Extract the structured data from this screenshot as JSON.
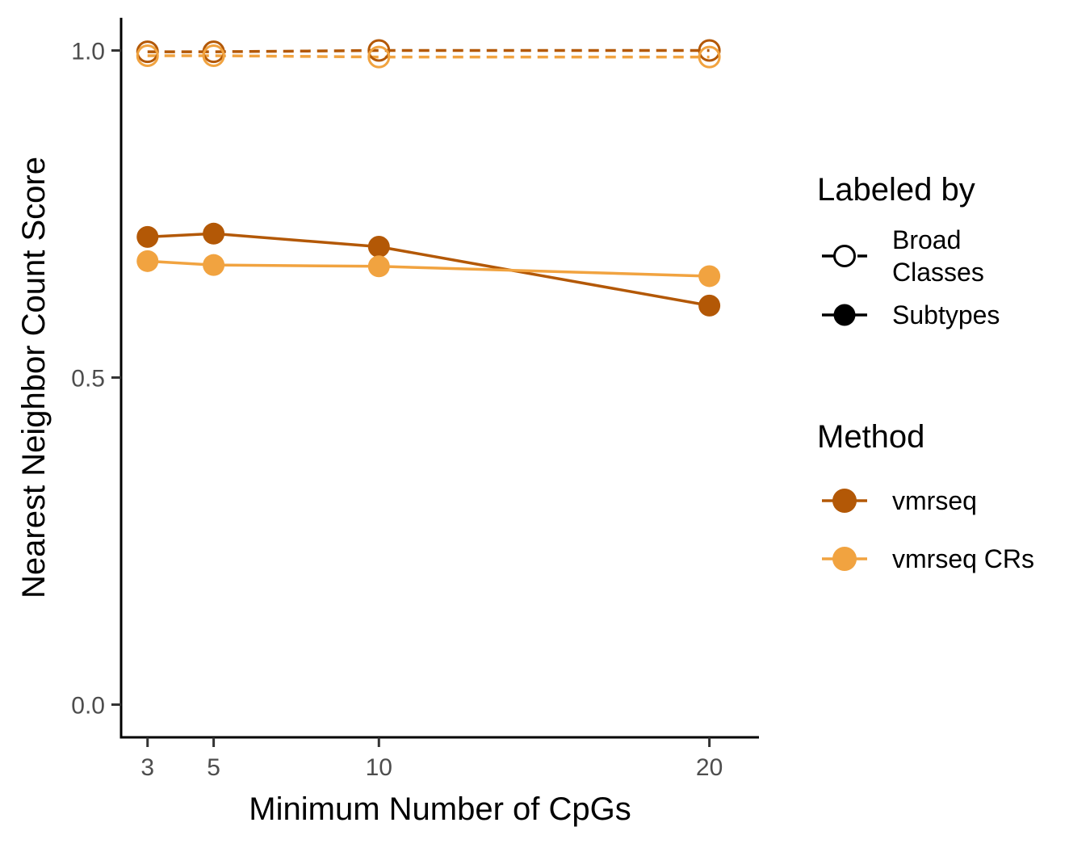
{
  "chart_data": {
    "type": "line",
    "xlabel": "Minimum Number of CpGs",
    "ylabel": "Nearest Neighbor Count Score",
    "x": [
      3,
      5,
      10,
      20
    ],
    "x_ticks": [
      "3",
      "5",
      "10",
      "20"
    ],
    "xlim": [
      2.2,
      21.5
    ],
    "y_ticks": [
      "0.0",
      "0.5",
      "1.0"
    ],
    "ylim": [
      -0.05,
      1.05
    ],
    "grid": false,
    "colors": {
      "vmrseq": "#b35806",
      "vmrseq CRs": "#f1a340",
      "legend_key": "#000000"
    },
    "series": [
      {
        "name": "vmrseq",
        "labeled_by": "Broad Classes",
        "values": [
          0.998,
          0.998,
          1.0,
          1.0
        ]
      },
      {
        "name": "vmrseq CRs",
        "labeled_by": "Broad Classes",
        "values": [
          0.992,
          0.992,
          0.99,
          0.99
        ]
      },
      {
        "name": "vmrseq",
        "labeled_by": "Subtypes",
        "values": [
          0.715,
          0.72,
          0.7,
          0.61
        ]
      },
      {
        "name": "vmrseq CRs",
        "labeled_by": "Subtypes",
        "values": [
          0.678,
          0.672,
          0.67,
          0.655
        ]
      }
    ],
    "legend": {
      "placement": "right",
      "labeled_by": {
        "title": "Labeled by",
        "items": [
          {
            "label_lines": [
              "Broad",
              "Classes"
            ],
            "style": "open"
          },
          {
            "label_lines": [
              "Subtypes"
            ],
            "style": "filled"
          }
        ]
      },
      "method": {
        "title": "Method",
        "items": [
          {
            "label": "vmrseq",
            "color": "#b35806"
          },
          {
            "label": "vmrseq CRs",
            "color": "#f1a340"
          }
        ]
      }
    }
  }
}
